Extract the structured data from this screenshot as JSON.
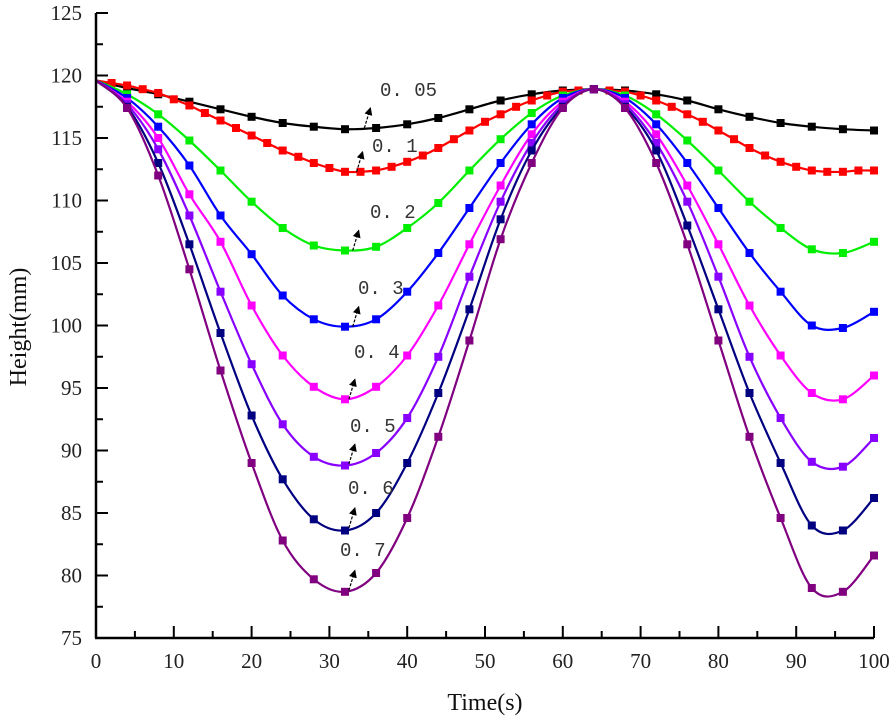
{
  "chart_data": {
    "type": "line",
    "title": "",
    "xlabel": "Time(s)",
    "ylabel": "Height(mm)",
    "xlim": [
      0,
      100
    ],
    "ylim": [
      75,
      125
    ],
    "xticks": [
      0,
      10,
      20,
      30,
      40,
      50,
      60,
      70,
      80,
      90,
      100
    ],
    "yticks": [
      75,
      80,
      85,
      90,
      95,
      100,
      105,
      110,
      115,
      120,
      125
    ],
    "grid": false,
    "legend": "none (inline arrow annotations)",
    "series": [
      {
        "name": "0.05",
        "color": "#000000",
        "x": [
          0,
          4,
          8,
          12,
          16,
          20,
          24,
          28,
          32,
          36,
          40,
          44,
          48,
          52,
          56,
          60,
          64,
          68,
          72,
          76,
          80,
          84,
          88,
          92,
          96,
          100
        ],
        "y": [
          119.6,
          119.0,
          118.5,
          117.9,
          117.3,
          116.7,
          116.2,
          115.9,
          115.7,
          115.8,
          116.1,
          116.6,
          117.3,
          118.0,
          118.5,
          118.8,
          118.9,
          118.8,
          118.5,
          118.0,
          117.3,
          116.7,
          116.2,
          115.9,
          115.7,
          115.6
        ]
      },
      {
        "name": "0.1",
        "color": "#ff0000",
        "x": [
          0,
          2,
          4,
          6,
          8,
          10,
          12,
          14,
          16,
          18,
          20,
          22,
          24,
          26,
          28,
          30,
          32,
          34,
          36,
          38,
          40,
          42,
          44,
          46,
          48,
          50,
          52,
          54,
          56,
          58,
          60,
          62,
          64,
          66,
          68,
          70,
          72,
          74,
          76,
          78,
          80,
          82,
          84,
          86,
          88,
          90,
          92,
          94,
          96,
          98,
          100
        ],
        "y": [
          119.6,
          119.4,
          119.2,
          118.9,
          118.6,
          118.1,
          117.6,
          117.0,
          116.4,
          115.8,
          115.2,
          114.6,
          114.0,
          113.5,
          113.0,
          112.6,
          112.3,
          112.3,
          112.4,
          112.7,
          113.1,
          113.6,
          114.2,
          114.9,
          115.6,
          116.3,
          116.9,
          117.5,
          118.0,
          118.4,
          118.7,
          118.8,
          118.9,
          118.8,
          118.7,
          118.4,
          118.0,
          117.5,
          116.9,
          116.3,
          115.6,
          114.9,
          114.2,
          113.6,
          113.1,
          112.7,
          112.4,
          112.3,
          112.3,
          112.4,
          112.4
        ]
      },
      {
        "name": "0.2",
        "color": "#00ee00",
        "x": [
          0,
          4,
          8,
          12,
          16,
          20,
          24,
          28,
          32,
          36,
          40,
          44,
          48,
          52,
          56,
          60,
          64,
          68,
          72,
          76,
          80,
          84,
          88,
          92,
          96,
          100
        ],
        "y": [
          119.6,
          118.5,
          116.9,
          114.8,
          112.4,
          109.9,
          107.8,
          106.4,
          106.0,
          106.3,
          107.8,
          109.8,
          112.4,
          114.9,
          117.0,
          118.4,
          118.9,
          118.4,
          116.9,
          114.8,
          112.4,
          109.9,
          107.8,
          106.1,
          105.8,
          106.7
        ]
      },
      {
        "name": "0.3",
        "color": "#0000ff",
        "x": [
          0,
          4,
          8,
          12,
          16,
          20,
          24,
          28,
          32,
          36,
          40,
          44,
          48,
          52,
          56,
          60,
          64,
          68,
          72,
          76,
          80,
          84,
          88,
          92,
          96,
          100
        ],
        "y": [
          119.6,
          118.2,
          115.9,
          112.8,
          108.8,
          105.7,
          102.4,
          100.5,
          99.9,
          100.5,
          102.7,
          105.8,
          109.4,
          113.0,
          116.1,
          118.2,
          118.9,
          118.2,
          116.1,
          113.0,
          109.4,
          105.8,
          102.7,
          100.0,
          99.8,
          101.1
        ]
      },
      {
        "name": "0.4",
        "color": "#ff00ff",
        "x": [
          0,
          4,
          8,
          12,
          16,
          20,
          24,
          28,
          32,
          36,
          40,
          44,
          48,
          52,
          56,
          60,
          64,
          68,
          72,
          76,
          80,
          84,
          88,
          92,
          96,
          100
        ],
        "y": [
          119.6,
          117.9,
          115.0,
          110.5,
          106.7,
          101.6,
          97.6,
          95.1,
          94.1,
          95.1,
          97.6,
          101.6,
          106.5,
          111.2,
          115.3,
          117.9,
          118.9,
          117.9,
          115.3,
          111.2,
          106.5,
          101.6,
          97.6,
          94.6,
          94.1,
          96.0
        ]
      },
      {
        "name": "0.5",
        "color": "#8800ff",
        "x": [
          0,
          4,
          8,
          12,
          16,
          20,
          24,
          28,
          32,
          36,
          40,
          44,
          48,
          52,
          56,
          60,
          64,
          68,
          72,
          76,
          80,
          84,
          88,
          92,
          96,
          100
        ],
        "y": [
          119.6,
          117.7,
          114.1,
          108.8,
          102.7,
          96.9,
          92.1,
          89.5,
          88.8,
          89.8,
          92.6,
          97.5,
          103.9,
          109.9,
          114.6,
          117.7,
          118.9,
          117.7,
          114.6,
          109.9,
          103.9,
          97.5,
          92.6,
          89.1,
          88.7,
          91.0
        ]
      },
      {
        "name": "0.6",
        "color": "#000080",
        "x": [
          0,
          4,
          8,
          12,
          16,
          20,
          24,
          28,
          32,
          36,
          40,
          44,
          48,
          52,
          56,
          60,
          64,
          68,
          72,
          76,
          80,
          84,
          88,
          92,
          96,
          100
        ],
        "y": [
          119.6,
          117.5,
          113.0,
          106.5,
          99.4,
          92.8,
          87.7,
          84.5,
          83.6,
          85.0,
          89.0,
          94.6,
          101.3,
          108.5,
          114.0,
          117.5,
          118.9,
          117.5,
          114.0,
          108.0,
          101.3,
          94.6,
          89.0,
          84.0,
          83.6,
          86.2
        ]
      },
      {
        "name": "0.7",
        "color": "#800080",
        "x": [
          0,
          4,
          8,
          12,
          16,
          20,
          24,
          28,
          32,
          36,
          40,
          44,
          48,
          52,
          56,
          60,
          64,
          68,
          72,
          76,
          80,
          84,
          88,
          92,
          96,
          100
        ],
        "y": [
          119.6,
          117.4,
          112.0,
          104.5,
          96.4,
          89.0,
          82.8,
          79.7,
          78.7,
          80.2,
          84.6,
          91.1,
          98.8,
          106.9,
          113.0,
          117.4,
          118.9,
          117.4,
          113.0,
          106.5,
          98.8,
          91.1,
          84.6,
          79.0,
          78.7,
          81.6
        ]
      }
    ],
    "annotations": [
      {
        "text": "0.05",
        "series": "0.05",
        "arrow_to": [
          34.5,
          115.8
        ]
      },
      {
        "text": "0.1",
        "series": "0.1",
        "arrow_to": [
          33.5,
          112.3
        ]
      },
      {
        "text": "0.2",
        "series": "0.2",
        "arrow_to": [
          33,
          106.0
        ]
      },
      {
        "text": "0.3",
        "series": "0.3",
        "arrow_to": [
          33,
          99.9
        ]
      },
      {
        "text": "0.4",
        "series": "0.4",
        "arrow_to": [
          32.5,
          94.1
        ]
      },
      {
        "text": "0.5",
        "series": "0.5",
        "arrow_to": [
          32.5,
          88.9
        ]
      },
      {
        "text": "0.6",
        "series": "0.6",
        "arrow_to": [
          32.5,
          83.8
        ]
      },
      {
        "text": "0.7",
        "series": "0.7",
        "arrow_to": [
          32.5,
          78.8
        ]
      }
    ]
  },
  "annotation_display": [
    "0. 05",
    "0. 1",
    "0. 2",
    "0. 3",
    "0. 4",
    "0. 5",
    "0. 6",
    "0. 7"
  ]
}
